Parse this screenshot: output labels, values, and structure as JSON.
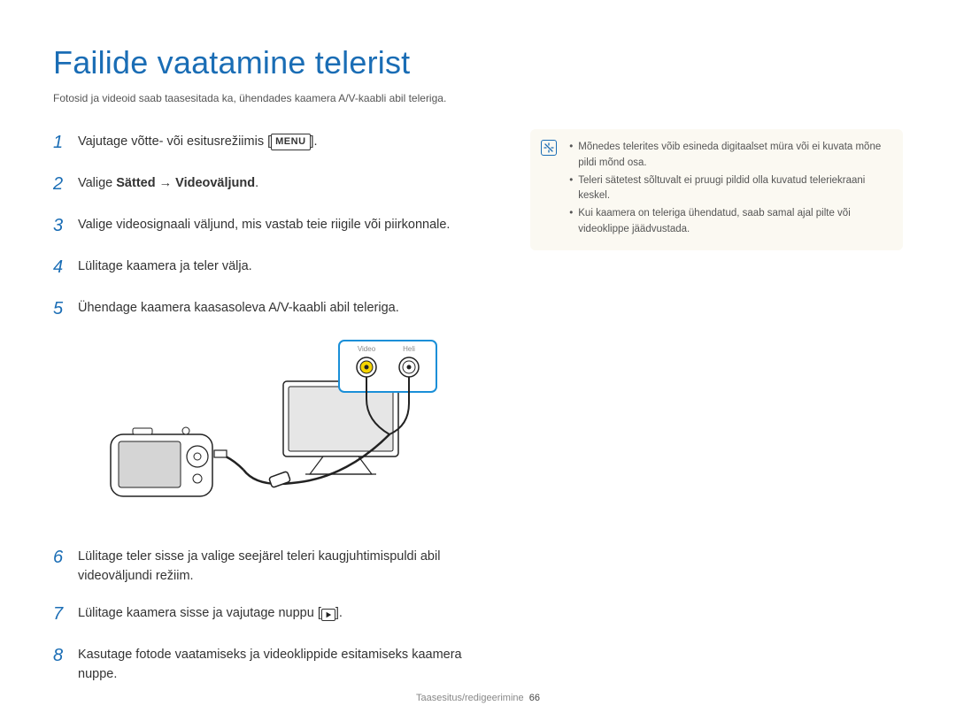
{
  "title": "Failide vaatamine telerist",
  "subtitle": "Fotosid ja videoid saab taasesitada ka, ühendades kaamera A/V-kaabli abil teleriga.",
  "steps": [
    {
      "num": "1",
      "textBefore": "Vajutage võtte- või esitusrežiimis [",
      "badge": "MENU",
      "textAfter": "]."
    },
    {
      "num": "2",
      "html": "Valige <b>Sätted</b> → <b>Videoväljund</b>."
    },
    {
      "num": "3",
      "html": "Valige videosignaali väljund, mis vastab teie riigile või piirkonnale."
    },
    {
      "num": "4",
      "html": "Lülitage kaamera ja teler välja."
    },
    {
      "num": "5",
      "html": "Ühendage kaamera kaasasoleva A/V-kaabli abil teleriga."
    },
    {
      "num": "6",
      "html": "Lülitage teler sisse ja valige seejärel teleri kaugjuhtimispuldi abil videoväljundi režiim."
    },
    {
      "num": "7",
      "textBefore": "Lülitage kaamera sisse ja vajutage nuppu [",
      "playIcon": true,
      "textAfter": "]."
    },
    {
      "num": "8",
      "html": "Kasutage fotode vaatamiseks ja videoklippide esitamiseks kaamera nuppe."
    }
  ],
  "diagram": {
    "labelVideo": "Video",
    "labelAudio": "Heli",
    "colors": {
      "panelBorder": "#1a8fd8",
      "yellowPlug": "#f5d400",
      "whitePlug": "#ffffff",
      "outline": "#222222",
      "screenFill": "#cfcfcf"
    }
  },
  "info": {
    "items": [
      "Mõnedes telerites võib esineda digitaalset müra või ei kuvata mõne pildi mõnd osa.",
      "Teleri sätetest sõltuvalt ei pruugi pildid olla kuvatud teleriekraani keskel.",
      "Kui kaamera on teleriga ühendatud, saab samal ajal pilte või videoklippe jäädvustada."
    ]
  },
  "footer": {
    "section": "Taasesitus/redigeerimine",
    "page": "66"
  }
}
